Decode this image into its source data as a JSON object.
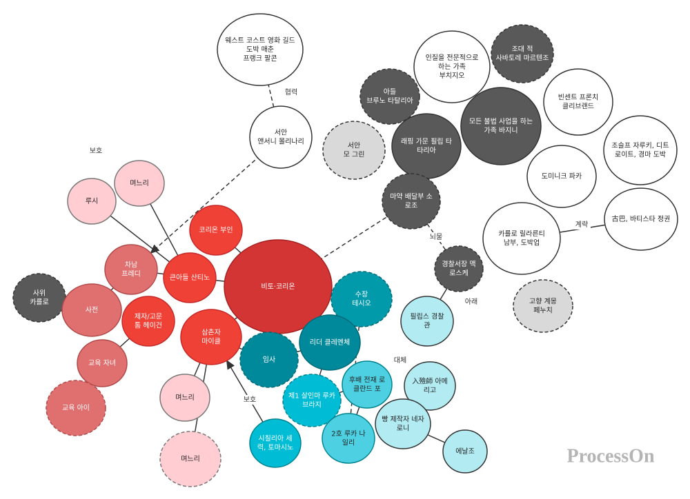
{
  "nodes": [
    {
      "lines": [
        "웨스트 코스트 영화 길드",
        "도박 매춘",
        "프랭크 팔콘"
      ]
    },
    {
      "lines": [
        "서안",
        "앤서니 몰리나리"
      ]
    },
    {
      "lines": [
        "인질을 전문적으로",
        "하는 가족",
        "부치지오"
      ]
    },
    {
      "lines": [
        "조대 적",
        "사바토레 마르텐조"
      ]
    },
    {
      "lines": [
        "아들",
        "브루노 타탈리아"
      ]
    },
    {
      "lines": [
        "빈센트 프론치",
        "클리브랜드"
      ]
    },
    {
      "lines": [
        "서안",
        "모 그린"
      ]
    },
    {
      "lines": [
        "래핑 가문 필립 타",
        "타리아"
      ]
    },
    {
      "lines": [
        "모든 불법 사업을 하는",
        "가족 바지니"
      ]
    },
    {
      "lines": [
        "조슬프 자루키, 디트",
        "로이트, 경마 도박"
      ]
    },
    {
      "lines": [
        "도미니크 파카"
      ]
    },
    {
      "lines": [
        "마약 배달부 소",
        "로조"
      ]
    },
    {
      "lines": [
        "카를로 릴라른티",
        "남부, 도박업"
      ]
    },
    {
      "lines": [
        "古巴, 바티스타 정권"
      ]
    },
    {
      "lines": [
        "경찰서장 맥",
        "로스케"
      ]
    },
    {
      "lines": [
        "고향 계몽",
        "페누치"
      ]
    },
    {
      "lines": [
        "비토·코리온"
      ]
    },
    {
      "lines": [
        "코리온 부인"
      ]
    },
    {
      "lines": [
        "큰아들 산티노"
      ]
    },
    {
      "lines": [
        "차남",
        "프레디"
      ]
    },
    {
      "lines": [
        "루시"
      ]
    },
    {
      "lines": [
        "며느리"
      ]
    },
    {
      "lines": [
        "사위",
        "카를로"
      ]
    },
    {
      "lines": [
        "사전"
      ]
    },
    {
      "lines": [
        "제자/고문",
        "톰 헤이건"
      ]
    },
    {
      "lines": [
        "삼촌자",
        "마이클"
      ]
    },
    {
      "lines": [
        "교육 자녀"
      ]
    },
    {
      "lines": [
        "교육 아이"
      ]
    },
    {
      "lines": [
        "며느리"
      ]
    },
    {
      "lines": [
        "며느리"
      ]
    },
    {
      "lines": [
        "수장",
        "테시오"
      ]
    },
    {
      "lines": [
        "리더 클레멘체"
      ]
    },
    {
      "lines": [
        "임사"
      ]
    },
    {
      "lines": [
        "필립스 경찰",
        "관"
      ]
    },
    {
      "lines": [
        "후배 전재 로",
        "클란드 포"
      ]
    },
    {
      "lines": [
        "제1 살인마 루카",
        "브라지"
      ]
    },
    {
      "lines": [
        "入殮師 아메",
        "리고"
      ]
    },
    {
      "lines": [
        "시칠리아 세",
        "력, 토마시노"
      ]
    },
    {
      "lines": [
        "2호 루카 나",
        "일리"
      ]
    },
    {
      "lines": [
        "빵 제작자 네자",
        "로니"
      ]
    },
    {
      "lines": [
        "에날조"
      ]
    }
  ],
  "edge_labels": [
    "협력",
    "보호",
    "계략",
    "뇌물",
    "아래",
    "대체",
    "보호"
  ],
  "watermark": "ProcessOn"
}
